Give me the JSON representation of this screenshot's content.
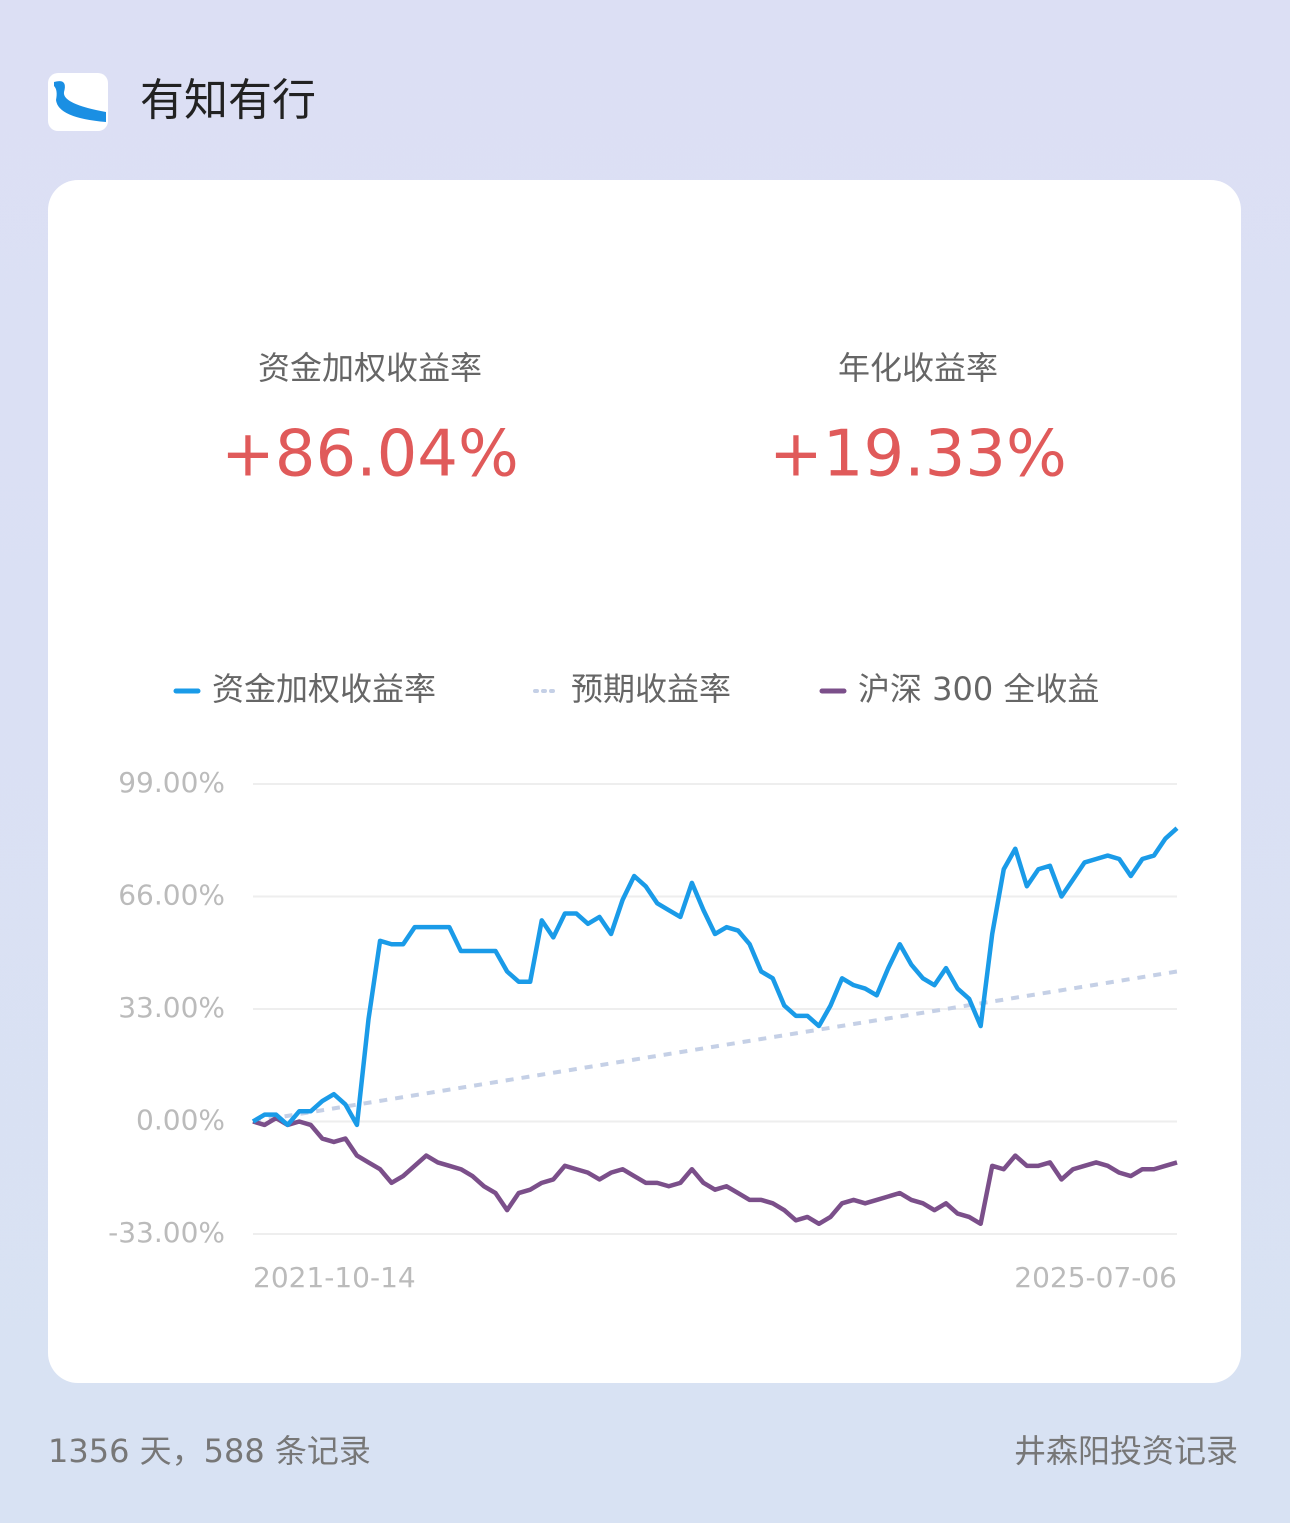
{
  "header": {
    "title": "有知有行"
  },
  "stats": [
    {
      "label": "资金加权收益率",
      "value": "+86.04%"
    },
    {
      "label": "年化收益率",
      "value": "+19.33%"
    }
  ],
  "chart_data": {
    "type": "line",
    "categories": [
      "2021-10-14",
      null,
      null,
      null,
      null,
      null,
      null,
      null,
      null,
      null,
      null,
      null,
      null,
      null,
      null,
      null,
      null,
      null,
      null,
      null,
      null,
      null,
      null,
      null,
      null,
      null,
      null,
      null,
      null,
      null,
      null,
      null,
      null,
      null,
      null,
      null,
      null,
      null,
      null,
      null,
      null,
      null,
      null,
      null,
      null,
      null,
      null,
      null,
      null,
      null,
      null,
      null,
      null,
      null,
      null,
      null,
      null,
      null,
      null,
      null,
      null,
      null,
      null,
      null,
      null,
      null,
      null,
      null,
      null,
      null,
      null,
      null,
      null,
      null,
      null,
      null,
      null,
      null,
      null,
      null,
      "2025-07-06"
    ],
    "series": [
      {
        "name": "资金加权收益率",
        "color": "#1a9be8",
        "style": "solid",
        "values": [
          0,
          2,
          2,
          -1,
          3,
          3,
          6,
          8,
          5,
          -1,
          30,
          53,
          52,
          52,
          57,
          57,
          57,
          57,
          50,
          50,
          50,
          50,
          44,
          41,
          41,
          59,
          54,
          61,
          61,
          58,
          60,
          55,
          65,
          72,
          69,
          64,
          62,
          60,
          70,
          62,
          55,
          57,
          56,
          52,
          44,
          42,
          34,
          31,
          31,
          28,
          34,
          42,
          40,
          39,
          37,
          45,
          52,
          46,
          42,
          40,
          45,
          39,
          36,
          28,
          55,
          74,
          80,
          69,
          74,
          75,
          66,
          71,
          76,
          77,
          78,
          77,
          72,
          77,
          78,
          83,
          86.04
        ]
      },
      {
        "name": "预期收益率",
        "color": "#c5d0e6",
        "style": "dotted",
        "values": [
          0,
          0.55,
          1.1,
          1.65,
          2.2,
          2.75,
          3.3,
          3.85,
          4.4,
          4.95,
          5.5,
          6.05,
          6.6,
          7.15,
          7.7,
          8.25,
          8.8,
          9.35,
          9.9,
          10.45,
          11,
          11.55,
          12.1,
          12.65,
          13.2,
          13.75,
          14.3,
          14.85,
          15.4,
          15.95,
          16.5,
          17.05,
          17.6,
          18.15,
          18.7,
          19.25,
          19.8,
          20.35,
          20.9,
          21.45,
          22,
          22.55,
          23.1,
          23.65,
          24.2,
          24.75,
          25.3,
          25.85,
          26.4,
          26.95,
          27.5,
          28.05,
          28.6,
          29.15,
          29.7,
          30.25,
          30.8,
          31.35,
          31.9,
          32.45,
          33,
          33.55,
          34.1,
          34.65,
          35.2,
          35.75,
          36.3,
          36.85,
          37.4,
          37.95,
          38.5,
          39.05,
          39.6,
          40.15,
          40.7,
          41.25,
          41.8,
          42.35,
          42.9,
          43.45,
          44
        ]
      },
      {
        "name": "沪深 300 全收益",
        "color": "#7b4f8a",
        "style": "solid",
        "values": [
          0,
          -1,
          1,
          -1,
          0,
          -1,
          -5,
          -6,
          -5,
          -10,
          -12,
          -14,
          -18,
          -16,
          -13,
          -10,
          -12,
          -13,
          -14,
          -16,
          -19,
          -21,
          -26,
          -21,
          -20,
          -18,
          -17,
          -13,
          -14,
          -15,
          -17,
          -15,
          -14,
          -16,
          -18,
          -18,
          -19,
          -18,
          -14,
          -18,
          -20,
          -19,
          -21,
          -23,
          -23,
          -24,
          -26,
          -29,
          -28,
          -30,
          -28,
          -24,
          -23,
          -24,
          -23,
          -22,
          -21,
          -23,
          -24,
          -26,
          -24,
          -27,
          -28,
          -30,
          -13,
          -14,
          -10,
          -13,
          -13,
          -12,
          -17,
          -14,
          -13,
          -12,
          -13,
          -15,
          -16,
          -14,
          -14,
          -13,
          -12
        ]
      }
    ],
    "ylim": [
      -33,
      99
    ],
    "yticks": [
      {
        "value": -33,
        "label": "-33.00%"
      },
      {
        "value": 0,
        "label": "0.00%"
      },
      {
        "value": 33,
        "label": "33.00%"
      },
      {
        "value": 66,
        "label": "66.00%"
      },
      {
        "value": 99,
        "label": "99.00%"
      }
    ],
    "grid": true
  },
  "footer": {
    "left": "1356 天，588 条记录",
    "right": "井森阳投资记录"
  }
}
